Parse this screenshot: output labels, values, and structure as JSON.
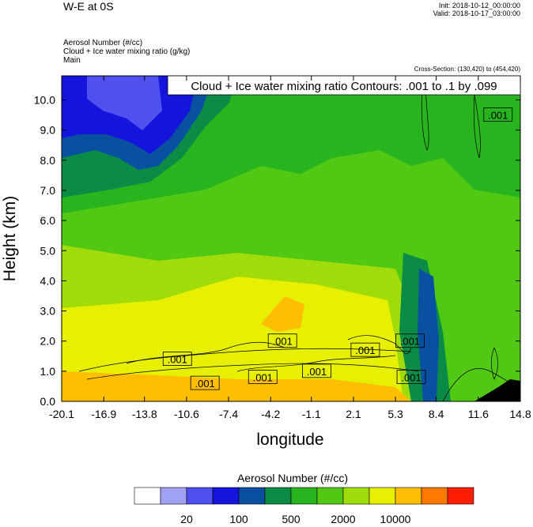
{
  "header": {
    "title": "W-E at 0S",
    "init": "Init: 2018-10-12_00:00:00",
    "valid": "Valid: 2018-10-17_03:00:00",
    "fields": [
      "Aerosol Number   (#/cc)",
      "Cloud + Ice water mixing ratio   (g/kg)",
      "Main"
    ],
    "cross_section": "Cross-Section: (130,420) to (454,420)"
  },
  "chart_data": {
    "type": "heatmap",
    "title": "W-E at 0S",
    "xlabel": "longitude",
    "ylabel": "Height (km)",
    "xlim": [
      -20.1,
      14.8
    ],
    "ylim": [
      0.0,
      10.8
    ],
    "x_ticks": [
      "-20.1",
      "-16.9",
      "-13.8",
      "-10.6",
      "-7.4",
      "-4.2",
      "-1.1",
      "2.1",
      "5.3",
      "8.4",
      "11.6",
      "14.8"
    ],
    "y_ticks": [
      "0.0",
      "1.0",
      "2.0",
      "3.0",
      "4.0",
      "5.0",
      "6.0",
      "7.0",
      "8.0",
      "9.0",
      "10.0"
    ],
    "contour_info": "Cloud + Ice water mixing ratio Contours: .001 to .1 by .099",
    "contour_labels": [
      {
        "text": ".001",
        "lon": -11.3,
        "h": 1.4
      },
      {
        "text": ".001",
        "lon": -9.2,
        "h": 0.6
      },
      {
        "text": ".001",
        "lon": -3.3,
        "h": 2.0
      },
      {
        "text": ".001",
        "lon": -4.8,
        "h": 0.8
      },
      {
        "text": ".001",
        "lon": -0.7,
        "h": 1.0
      },
      {
        "text": ".001",
        "lon": 3.0,
        "h": 1.7
      },
      {
        "text": ".001",
        "lon": 6.4,
        "h": 2.0
      },
      {
        "text": ".001",
        "lon": 6.5,
        "h": 0.8
      },
      {
        "text": ".001",
        "lon": 13.1,
        "h": 9.5
      }
    ],
    "colorbar": {
      "title": "Aerosol Number  (#/cc)",
      "colors": [
        "#ffffff",
        "#a0a0f5",
        "#5050f0",
        "#1414dc",
        "#0a50a0",
        "#0a8c46",
        "#28b41e",
        "#50c814",
        "#a0dc0a",
        "#e6f000",
        "#ffbe00",
        "#ff7800",
        "#ff1e00"
      ],
      "labels": [
        "20",
        "100",
        "500",
        "2000",
        "10000"
      ]
    }
  }
}
